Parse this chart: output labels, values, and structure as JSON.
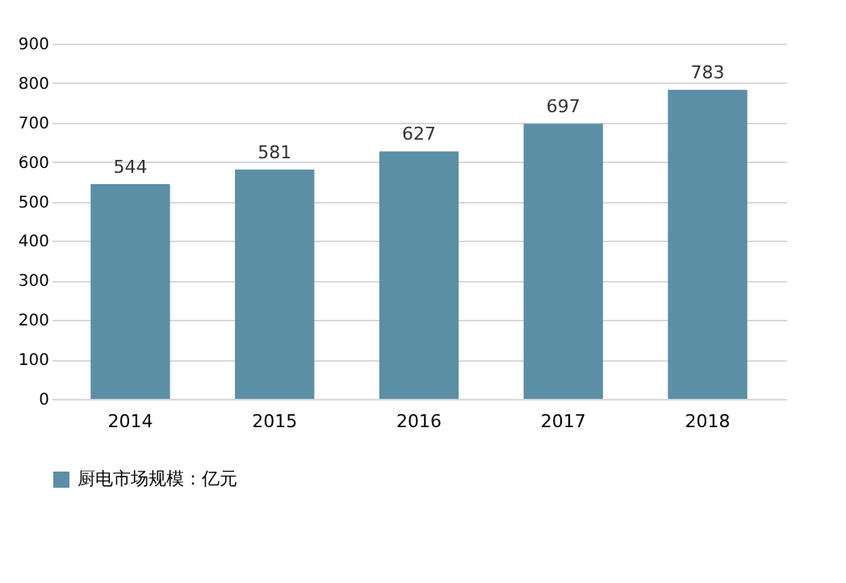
{
  "chart_data": {
    "type": "bar",
    "categories": [
      "2014",
      "2015",
      "2016",
      "2017",
      "2018"
    ],
    "series": [
      {
        "name": "厨电市场规模：亿元",
        "color": "#5b8fa6",
        "values": [
          544,
          581,
          627,
          697,
          783
        ]
      }
    ],
    "ylim": [
      0,
      900
    ],
    "yticks": [
      0,
      100,
      200,
      300,
      400,
      500,
      600,
      700,
      800,
      900
    ],
    "grid": "y",
    "legend": "bottom",
    "data_labels": true
  }
}
